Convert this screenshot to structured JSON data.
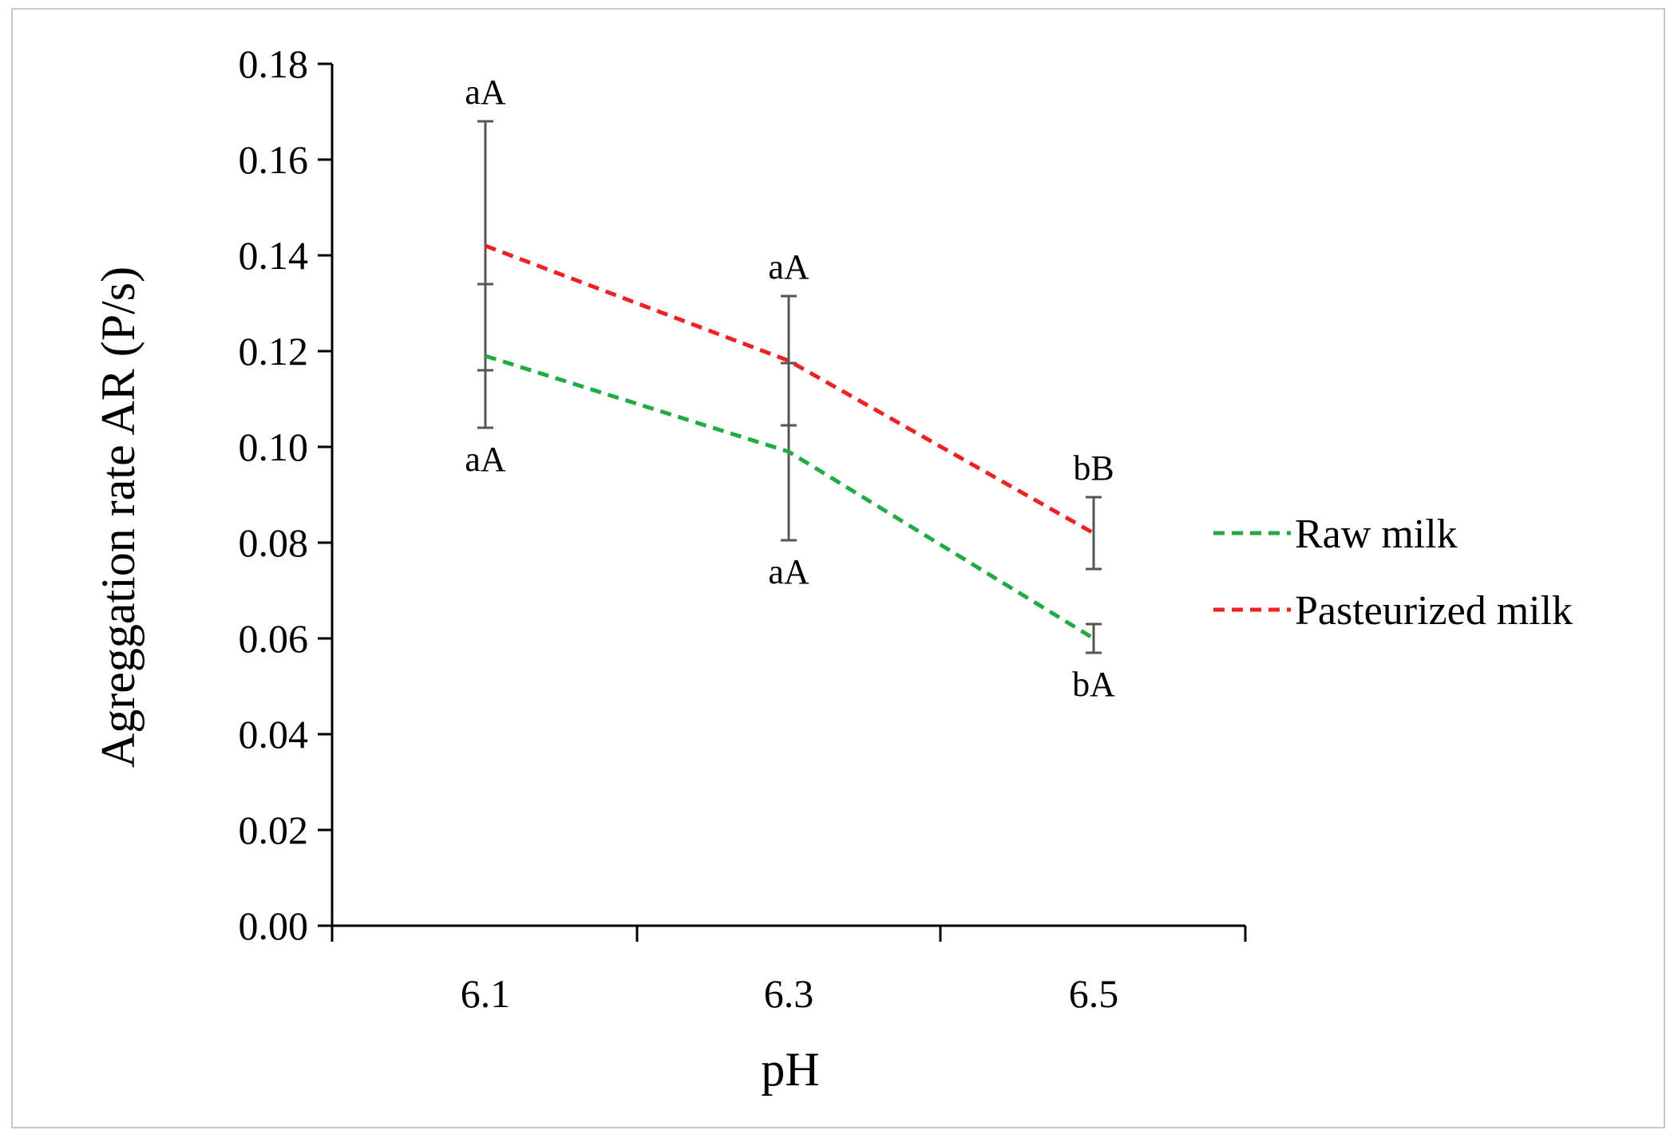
{
  "chart_data": {
    "type": "line",
    "title": "",
    "xlabel": "pH",
    "ylabel": "Agreggation rate AR (P/s)",
    "categories": [
      "6.1",
      "6.3",
      "6.5"
    ],
    "ylim": [
      0,
      0.18
    ],
    "y_ticks": [
      "0.00",
      "0.02",
      "0.04",
      "0.06",
      "0.08",
      "0.10",
      "0.12",
      "0.14",
      "0.16",
      "0.18"
    ],
    "legend_position": "right",
    "series": [
      {
        "name": "Raw milk",
        "color": "#22aa44",
        "line_style": "dashed",
        "values": [
          0.119,
          0.099,
          0.06
        ],
        "error": [
          0.015,
          0.0185,
          0.003
        ],
        "annotations": [
          "aA",
          "aA",
          "bA"
        ],
        "annotation_position": "below"
      },
      {
        "name": "Pasteurized milk",
        "color": "#ee2222",
        "line_style": "dashed",
        "values": [
          0.142,
          0.118,
          0.082
        ],
        "error": [
          0.026,
          0.0135,
          0.0075
        ],
        "annotations": [
          "aA",
          "aA",
          "bB"
        ],
        "annotation_position": "above"
      }
    ],
    "error_bar_color": "#555555"
  }
}
